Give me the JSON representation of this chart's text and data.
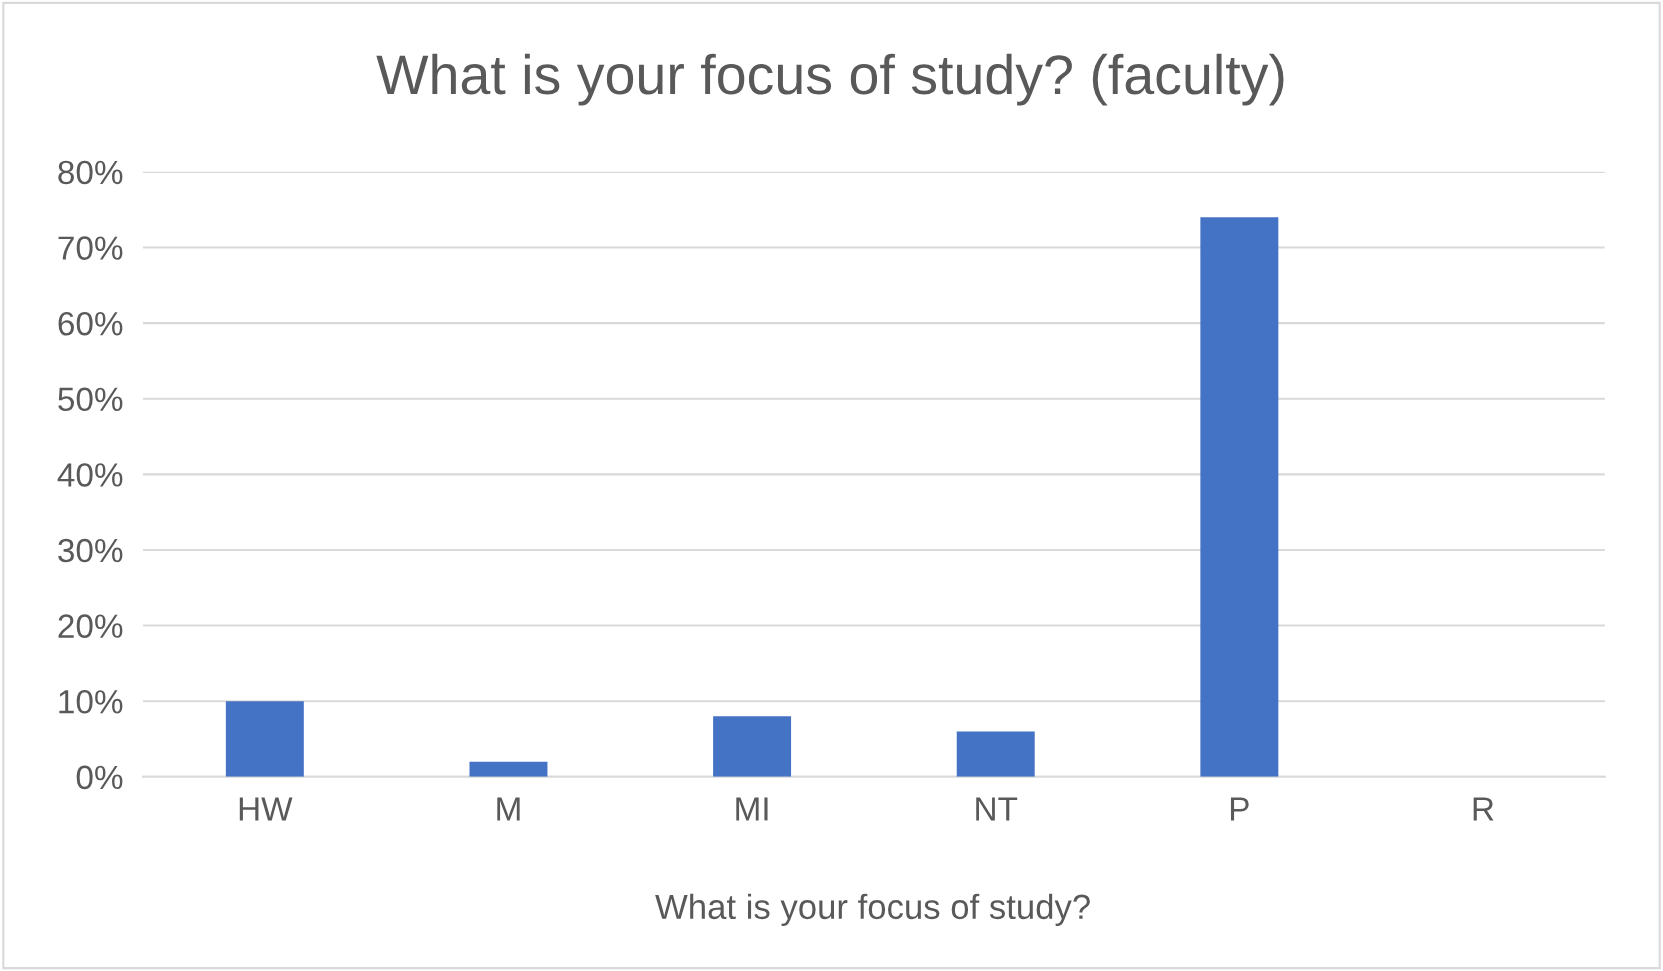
{
  "chart_data": {
    "type": "bar",
    "title": "What is your focus of study? (faculty)",
    "xlabel": "What is your focus of study?",
    "categories": [
      "HW",
      "M",
      "MI",
      "NT",
      "P",
      "R"
    ],
    "values": [
      10,
      2,
      8,
      6,
      74,
      0
    ],
    "color": "#4472c4",
    "ylim": [
      0,
      80
    ],
    "yticks": [
      {
        "value": 0,
        "label": "0%"
      },
      {
        "value": 10,
        "label": "10%"
      },
      {
        "value": 20,
        "label": "20%"
      },
      {
        "value": 30,
        "label": "30%"
      },
      {
        "value": 40,
        "label": "40%"
      },
      {
        "value": 50,
        "label": "50%"
      },
      {
        "value": 60,
        "label": "60%"
      },
      {
        "value": 70,
        "label": "70%"
      },
      {
        "value": 80,
        "label": "80%"
      }
    ],
    "grid": "y",
    "legend": false
  }
}
